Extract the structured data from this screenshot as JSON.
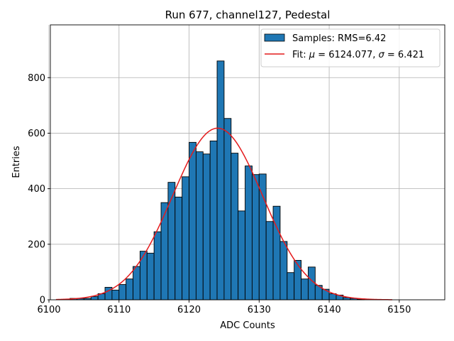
{
  "chart_data": {
    "type": "bar",
    "title": "Run 677, channel127, Pedestal",
    "xlabel": "ADC Counts",
    "ylabel": "Entries",
    "xlim": [
      6100.2,
      6156.5
    ],
    "ylim": [
      0,
      990
    ],
    "x_ticks": [
      6100,
      6110,
      6120,
      6130,
      6140,
      6150
    ],
    "y_ticks": [
      0,
      200,
      400,
      600,
      800
    ],
    "grid": true,
    "legend_position": "top-right",
    "bin_width": 1,
    "bin_edges_start": 6103,
    "histogram": {
      "name": "Samples: RMS=6.42",
      "color": "#1f77b4",
      "values": [
        5,
        5,
        5,
        12,
        22,
        45,
        35,
        55,
        75,
        120,
        175,
        168,
        245,
        350,
        423,
        370,
        443,
        567,
        533,
        525,
        572,
        860,
        653,
        528,
        320,
        482,
        451,
        453,
        282,
        337,
        210,
        98,
        142,
        75,
        118,
        52,
        38,
        22,
        17,
        8,
        5,
        2
      ]
    },
    "fit": {
      "name_prefix": "Fit: ",
      "mu_symbol": "μ",
      "mu_text": " = 6124.077, ",
      "sigma_symbol": "σ",
      "sigma_text": " = 6.421",
      "mu": 6124.077,
      "sigma": 6.421,
      "amplitude": 618,
      "x_range": [
        6101,
        6149
      ],
      "color": "#e41a1c"
    }
  }
}
